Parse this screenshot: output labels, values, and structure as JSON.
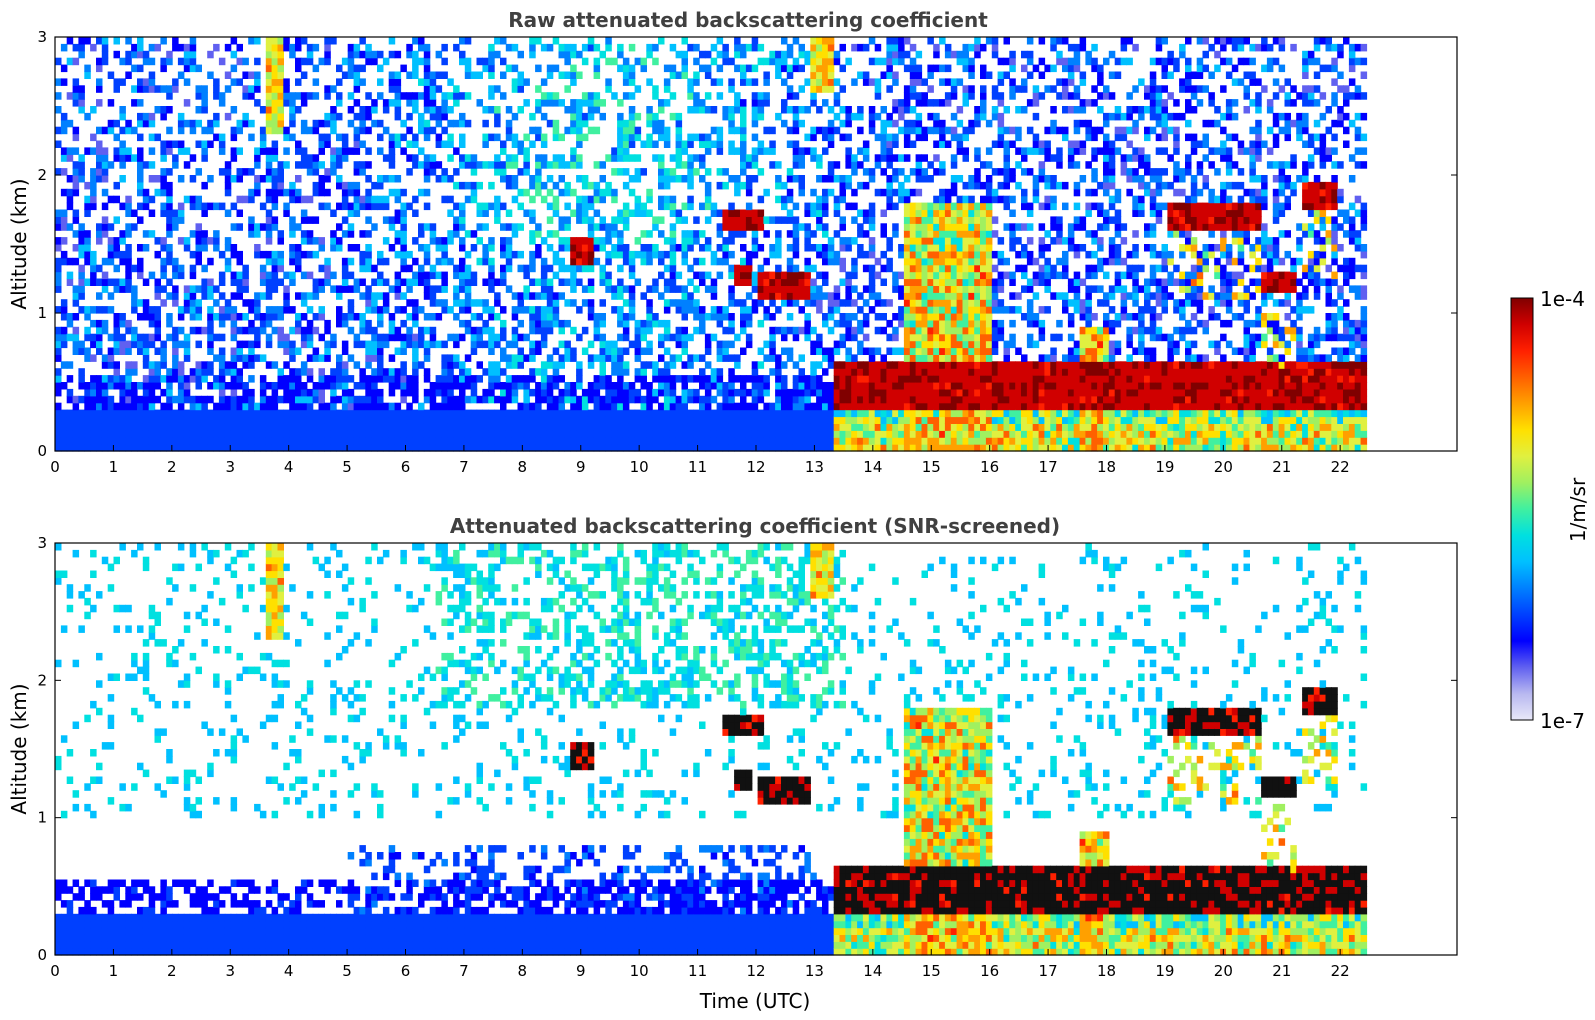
{
  "chart_data": [
    {
      "type": "heatmap",
      "title": "Raw attenuated backscattering coefficient",
      "xlabel": "",
      "ylabel": "Altitude (km)",
      "xlim": [
        0,
        24
      ],
      "ylim": [
        0,
        3
      ],
      "xticks": [
        "0",
        "1",
        "2",
        "3",
        "4",
        "5",
        "6",
        "7",
        "8",
        "9",
        "10",
        "11",
        "12",
        "13",
        "14",
        "15",
        "16",
        "17",
        "18",
        "19",
        "20",
        "21",
        "22"
      ],
      "yticks": [
        "0",
        "1",
        "2",
        "3"
      ],
      "data_end_time_utc": 22.45,
      "features": [
        {
          "label": "boundary layer aerosol",
          "t_start": 0,
          "t_end": 13.2,
          "alt_top_km": 0.3
        },
        {
          "label": "cloud",
          "t_start": 8.85,
          "t_end": 9.2,
          "alt_km": 1.45
        },
        {
          "label": "cloud",
          "t_start": 11.4,
          "t_end": 12.1,
          "alt_km": 1.68
        },
        {
          "label": "cloud",
          "t_start": 11.6,
          "t_end": 11.95,
          "alt_km": 1.28
        },
        {
          "label": "cloud",
          "t_start": 12.0,
          "t_end": 12.9,
          "alt_km": 1.2
        },
        {
          "label": "cloud layer",
          "t_start": 13.3,
          "t_end": 22.4,
          "alt_km_range": [
            0.3,
            0.65
          ]
        },
        {
          "label": "cloud",
          "t_start": 19.0,
          "t_end": 20.6,
          "alt_km": 1.7
        },
        {
          "label": "cloud",
          "t_start": 21.3,
          "t_end": 21.9,
          "alt_km": 1.85
        },
        {
          "label": "cloud",
          "t_start": 20.6,
          "t_end": 21.2,
          "alt_km": 1.22
        },
        {
          "label": "precipitation streak",
          "t_start": 3.6,
          "t_end": 3.9,
          "alt_km_range": [
            2.3,
            3.0
          ]
        },
        {
          "label": "precipitation streak",
          "t_start": 12.9,
          "t_end": 13.3,
          "alt_km_range": [
            2.6,
            3.0
          ]
        }
      ]
    },
    {
      "type": "heatmap",
      "title": "Attenuated backscattering coefficient (SNR-screened)",
      "xlabel": "Time (UTC)",
      "ylabel": "Altitude (km)",
      "xlim": [
        0,
        24
      ],
      "ylim": [
        0,
        3
      ],
      "xticks": [
        "0",
        "1",
        "2",
        "3",
        "4",
        "5",
        "6",
        "7",
        "8",
        "9",
        "10",
        "11",
        "12",
        "13",
        "14",
        "15",
        "16",
        "17",
        "18",
        "19",
        "20",
        "21",
        "22"
      ],
      "yticks": [
        "0",
        "1",
        "2",
        "3"
      ],
      "data_end_time_utc": 22.45
    }
  ],
  "colorbar": {
    "label": "1/m/sr",
    "max_label": "1e-4",
    "min_label": "1e-7",
    "scale": "log",
    "range": [
      1e-07,
      0.0001
    ],
    "colors": [
      "#e8e8f8",
      "#b8b8f0",
      "#6060f0",
      "#0000ff",
      "#0040ff",
      "#0080ff",
      "#00c0ff",
      "#00e0e0",
      "#40f0a0",
      "#a0f060",
      "#e0f040",
      "#ffe000",
      "#ffa000",
      "#ff6000",
      "#ff2000",
      "#d00000",
      "#800000"
    ]
  },
  "colors": {
    "title": "#404040",
    "axis": "#000000",
    "background": "#ffffff"
  }
}
